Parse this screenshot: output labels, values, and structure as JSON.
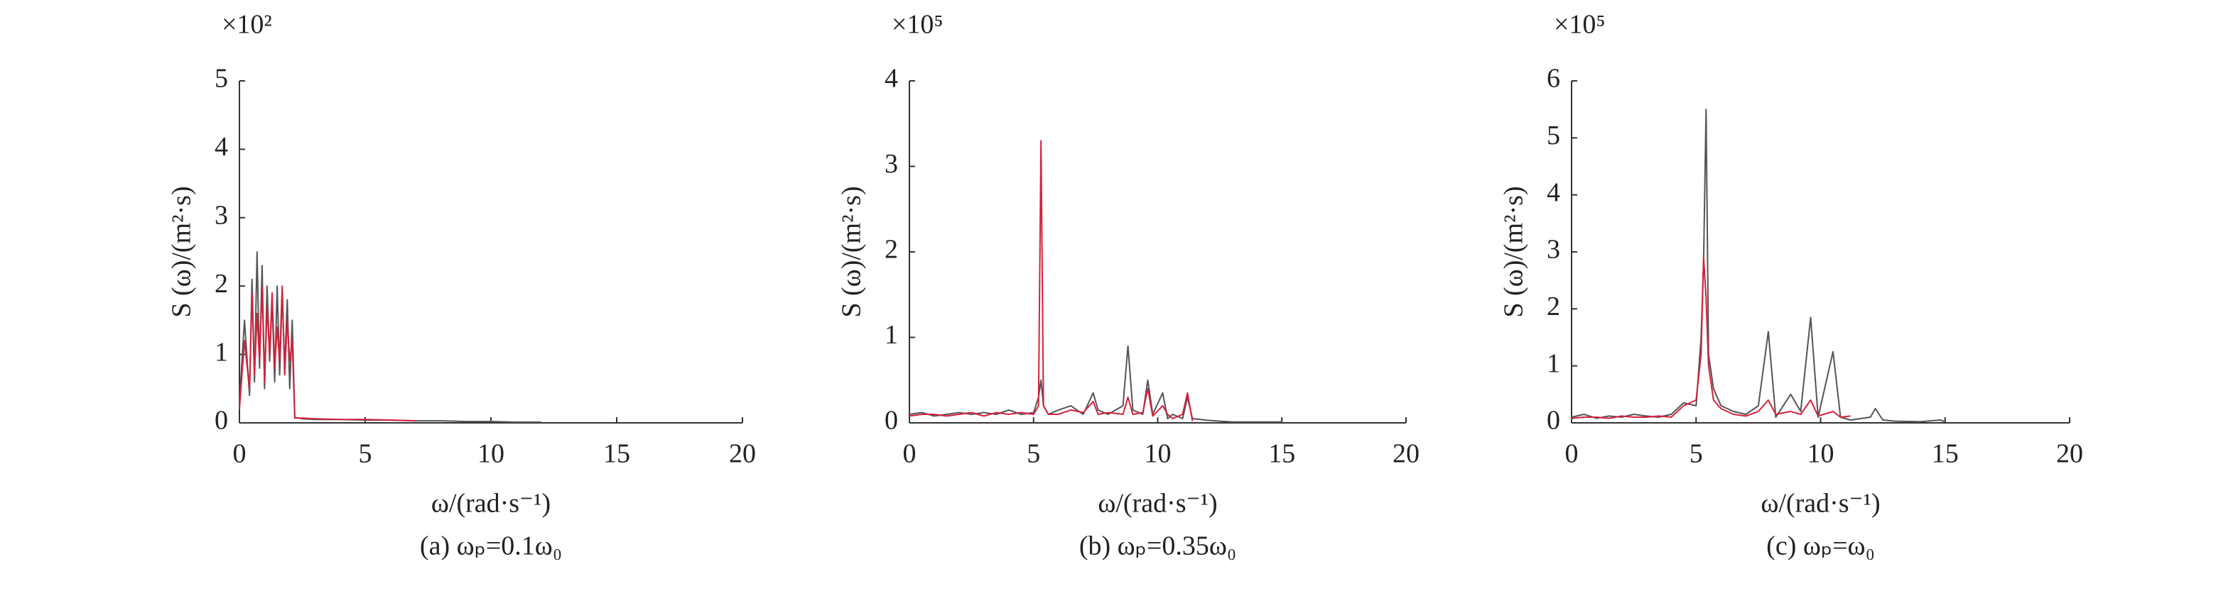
{
  "chart_data": [
    {
      "type": "line",
      "caption": "(a) ωₚ=0.1ω₀",
      "y_multiplier": "×10²",
      "xlabel": "ω/(rad·s⁻¹)",
      "ylabel": "S (ω)/(m²·s)",
      "xlim": [
        0,
        20
      ],
      "xticks": [
        0,
        5,
        10,
        15,
        20
      ],
      "ylim": [
        0,
        5
      ],
      "yticks": [
        0,
        1,
        2,
        3,
        4,
        5
      ],
      "x": [
        0,
        0.2,
        0.4,
        0.5,
        0.6,
        0.7,
        0.8,
        0.9,
        1.0,
        1.1,
        1.2,
        1.3,
        1.4,
        1.5,
        1.6,
        1.7,
        1.8,
        1.9,
        2.0,
        2.1,
        2.2,
        2.5,
        3,
        4,
        5,
        6,
        7,
        8,
        9,
        10,
        11,
        12
      ],
      "series": [
        {
          "color": "#555555",
          "values": [
            0.3,
            1.5,
            0.4,
            2.1,
            0.6,
            2.5,
            0.8,
            2.3,
            0.5,
            2.0,
            0.9,
            1.8,
            0.6,
            2.0,
            0.7,
            1.9,
            0.8,
            1.8,
            0.5,
            1.5,
            0.08,
            0.06,
            0.05,
            0.05,
            0.04,
            0.04,
            0.03,
            0.03,
            0.02,
            0.02,
            0.01,
            0.01
          ]
        },
        {
          "color": "#d4213d",
          "values": [
            0.2,
            1.2,
            0.5,
            1.9,
            0.7,
            1.6,
            0.9,
            2.0,
            0.6,
            1.7,
            1.0,
            1.9,
            0.8,
            1.4,
            0.9,
            2.0,
            0.7,
            1.5,
            0.9,
            1.2,
            0.07,
            0.07,
            0.06,
            0.05,
            0.05,
            0.04,
            0.03,
            null,
            null,
            null,
            null,
            null
          ]
        }
      ]
    },
    {
      "type": "line",
      "caption": "(b) ωₚ=0.35ω₀",
      "y_multiplier": "×10⁵",
      "xlabel": "ω/(rad·s⁻¹)",
      "ylabel": "S (ω)/(m²·s)",
      "xlim": [
        0,
        20
      ],
      "xticks": [
        0,
        5,
        10,
        15,
        20
      ],
      "ylim": [
        0,
        4
      ],
      "yticks": [
        0,
        1,
        2,
        3,
        4
      ],
      "x": [
        0,
        0.5,
        1,
        1.5,
        2,
        2.5,
        3,
        3.5,
        4,
        4.5,
        5,
        5.2,
        5.3,
        5.4,
        5.6,
        6,
        6.5,
        7,
        7.4,
        7.6,
        8,
        8.6,
        8.8,
        9,
        9.4,
        9.6,
        9.8,
        10.2,
        10.4,
        10.6,
        11,
        11.2,
        11.4,
        12,
        12.5,
        13,
        14,
        15
      ],
      "series": [
        {
          "color": "#555555",
          "values": [
            0.1,
            0.12,
            0.08,
            0.1,
            0.12,
            0.1,
            0.12,
            0.1,
            0.15,
            0.1,
            0.12,
            0.3,
            0.5,
            0.2,
            0.1,
            0.15,
            0.2,
            0.1,
            0.35,
            0.15,
            0.1,
            0.2,
            0.9,
            0.15,
            0.1,
            0.5,
            0.1,
            0.35,
            0.05,
            0.1,
            0.05,
            0.3,
            0.05,
            0.03,
            0.02,
            0.01,
            0.01,
            0.01
          ]
        },
        {
          "color": "#d4213d",
          "values": [
            0.08,
            0.1,
            0.1,
            0.08,
            0.1,
            0.12,
            0.08,
            0.12,
            0.1,
            0.12,
            0.1,
            0.2,
            3.3,
            0.2,
            0.1,
            0.1,
            0.15,
            0.12,
            0.25,
            0.1,
            0.12,
            0.1,
            0.3,
            0.1,
            0.12,
            0.4,
            0.08,
            0.2,
            0.1,
            0.05,
            0.1,
            0.35,
            0.02,
            null,
            null,
            null,
            null,
            null
          ]
        }
      ]
    },
    {
      "type": "line",
      "caption": "(c) ωₚ=ω₀",
      "y_multiplier": "×10⁵",
      "xlabel": "ω/(rad·s⁻¹)",
      "ylabel": "S (ω)/(m²·s)",
      "xlim": [
        0,
        20
      ],
      "xticks": [
        0,
        5,
        10,
        15,
        20
      ],
      "ylim": [
        0,
        6
      ],
      "yticks": [
        0,
        1,
        2,
        3,
        4,
        5,
        6
      ],
      "x": [
        0,
        0.5,
        1,
        1.5,
        2,
        2.5,
        3,
        3.5,
        4,
        4.5,
        5,
        5.2,
        5.3,
        5.4,
        5.5,
        5.7,
        6,
        6.5,
        7,
        7.5,
        7.9,
        8.2,
        8.8,
        9.2,
        9.6,
        9.9,
        10.5,
        10.8,
        11.2,
        12,
        12.2,
        12.5,
        13,
        14,
        14.8,
        15
      ],
      "series": [
        {
          "color": "#555555",
          "values": [
            0.1,
            0.15,
            0.08,
            0.12,
            0.1,
            0.15,
            0.12,
            0.1,
            0.15,
            0.35,
            0.3,
            1.5,
            2.8,
            5.5,
            1.2,
            0.6,
            0.3,
            0.2,
            0.15,
            0.3,
            1.6,
            0.1,
            0.5,
            0.2,
            1.85,
            0.1,
            1.25,
            0.1,
            0.05,
            0.1,
            0.25,
            0.05,
            0.03,
            0.02,
            0.05,
            0.02
          ]
        },
        {
          "color": "#d4213d",
          "values": [
            0.08,
            0.1,
            0.1,
            0.08,
            0.12,
            0.1,
            0.1,
            0.12,
            0.1,
            0.3,
            0.4,
            1.2,
            2.9,
            2.2,
            1.0,
            0.4,
            0.25,
            0.15,
            0.12,
            0.2,
            0.4,
            0.15,
            0.2,
            0.15,
            0.4,
            0.12,
            0.2,
            0.1,
            0.12,
            null,
            null,
            null,
            null,
            null,
            null,
            null
          ]
        }
      ]
    }
  ]
}
